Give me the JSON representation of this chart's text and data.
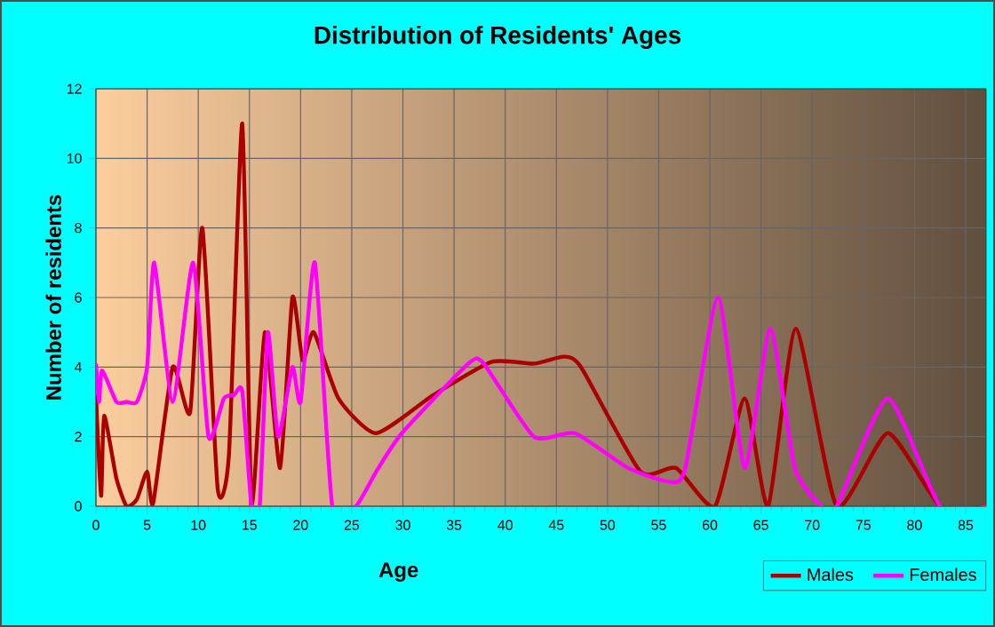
{
  "chart_data": {
    "type": "line",
    "title": "Distribution of Residents' Ages",
    "xlabel": "Age",
    "ylabel": "Number of residents",
    "xlim": [
      0,
      87
    ],
    "xticks": [
      0,
      5,
      10,
      15,
      20,
      25,
      30,
      35,
      40,
      45,
      50,
      55,
      60,
      65,
      70,
      75,
      80,
      85
    ],
    "ylim": [
      0,
      12
    ],
    "yticks": [
      0,
      2,
      4,
      6,
      8,
      10,
      12
    ],
    "grid": true,
    "legend": "bottom right",
    "series": [
      {
        "name": "Males",
        "color": "#aa0000",
        "x": [
          0,
          0.5,
          0.8,
          2,
          3,
          4,
          5,
          5.6,
          7.5,
          9.2,
          10.4,
          11.9,
          13,
          14.3,
          15.2,
          16.5,
          18,
          19.2,
          20.2,
          21.3,
          23.7,
          27.4,
          33,
          38.7,
          42.8,
          45.7,
          47.4,
          53.2,
          56.7,
          60.5,
          63.4,
          65.7,
          68.4,
          72.4,
          77.4,
          82.5,
          87
        ],
        "values": [
          3.2,
          0.3,
          2.6,
          0.8,
          0,
          0.2,
          1,
          0.1,
          4,
          2.7,
          8,
          0.5,
          1.5,
          11,
          0.1,
          5,
          1.1,
          6,
          4.2,
          5,
          3.1,
          2.1,
          3.2,
          4.15,
          4.1,
          4.3,
          4,
          1,
          1.1,
          0,
          3.1,
          0,
          5.1,
          0,
          2.1,
          0,
          0
        ]
      },
      {
        "name": "Females",
        "color": "#ff00ff",
        "x": [
          0,
          0.3,
          0.6,
          2,
          3,
          4,
          5,
          5.7,
          7.5,
          9.5,
          11,
          12.5,
          13.5,
          14.3,
          15.2,
          16,
          16.8,
          17.8,
          19.2,
          20,
          21.4,
          23.1,
          25.4,
          27.4,
          29.9,
          36.4,
          37.9,
          42.8,
          46.8,
          52,
          56.1,
          57.6,
          60.8,
          63.4,
          65.9,
          68.3,
          70.9,
          72.4,
          77.4,
          82.5,
          87
        ],
        "values": [
          4.1,
          3,
          3.9,
          3,
          3,
          3,
          4,
          7,
          3,
          7,
          2,
          3.1,
          3.2,
          3.3,
          0,
          0,
          5,
          2,
          4,
          3,
          7,
          0,
          0,
          1,
          2.1,
          4.1,
          4.1,
          2,
          2.1,
          1.1,
          0.7,
          1.1,
          6,
          1.1,
          5.1,
          1.1,
          0,
          0,
          3.1,
          0,
          0
        ]
      }
    ]
  }
}
